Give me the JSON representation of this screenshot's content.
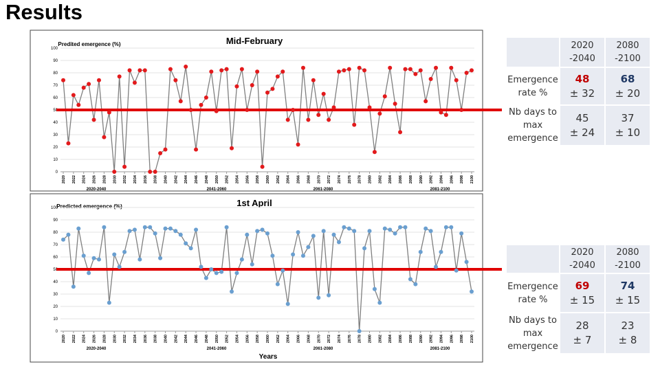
{
  "title": "Results",
  "chart_data": [
    {
      "type": "line",
      "title": "Mid-February",
      "y_label": "Predited emergence (%)",
      "x": [
        2020,
        2021,
        2022,
        2023,
        2024,
        2025,
        2026,
        2027,
        2028,
        2029,
        2030,
        2031,
        2032,
        2033,
        2034,
        2035,
        2036,
        2037,
        2038,
        2039,
        2040,
        2041,
        2042,
        2043,
        2044,
        2045,
        2046,
        2047,
        2048,
        2049,
        2050,
        2051,
        2052,
        2053,
        2054,
        2055,
        2056,
        2057,
        2058,
        2059,
        2060,
        2061,
        2062,
        2063,
        2064,
        2065,
        2066,
        2067,
        2068,
        2069,
        2070,
        2071,
        2072,
        2073,
        2074,
        2075,
        2076,
        2077,
        2078,
        2079,
        2080,
        2081,
        2082,
        2083,
        2084,
        2085,
        2086,
        2087,
        2088,
        2089,
        2090,
        2091,
        2092,
        2093,
        2094,
        2095,
        2096,
        2097,
        2098,
        2099,
        2100
      ],
      "values": [
        74,
        23,
        62,
        54,
        68,
        71,
        42,
        74,
        28,
        48,
        0,
        77,
        4,
        82,
        72,
        82,
        82,
        0,
        0,
        15,
        18,
        83,
        74,
        57,
        85,
        50,
        18,
        54,
        60,
        81,
        49,
        82,
        83,
        19,
        69,
        83,
        50,
        70,
        81,
        4,
        64,
        67,
        77,
        81,
        42,
        50,
        22,
        84,
        42,
        74,
        46,
        63,
        42,
        52,
        81,
        82,
        83,
        38,
        84,
        82,
        52,
        16,
        47,
        61,
        84,
        55,
        32,
        83,
        83,
        79,
        82,
        57,
        75,
        84,
        48,
        46,
        84,
        74,
        50,
        80,
        82
      ],
      "color": "#e31a1c",
      "line_color": "#7f7f7f",
      "xlim": [
        2020,
        2100
      ],
      "ylim": [
        0,
        100
      ],
      "yticks": [
        0,
        10,
        20,
        30,
        40,
        50,
        60,
        70,
        80,
        90,
        100
      ],
      "xticks": [
        2020,
        2022,
        2024,
        2026,
        2028,
        2030,
        2032,
        2034,
        2036,
        2038,
        2040,
        2042,
        2044,
        2046,
        2048,
        2050,
        2052,
        2054,
        2056,
        2058,
        2060,
        2062,
        2064,
        2066,
        2068,
        2070,
        2072,
        2074,
        2076,
        2078,
        2080,
        2082,
        2084,
        2086,
        2088,
        2090,
        2092,
        2094,
        2096,
        2098,
        2100
      ],
      "period_labels": [
        "2020-2040",
        "2041-2060",
        "2061-2080",
        "2081-2100"
      ],
      "threshold": 50,
      "threshold_color": "#e00000",
      "grid": true
    },
    {
      "type": "line",
      "title": "1st April",
      "y_label": "Predicted emergence (%)",
      "x_label": "Years",
      "x": [
        2020,
        2021,
        2022,
        2023,
        2024,
        2025,
        2026,
        2027,
        2028,
        2029,
        2030,
        2031,
        2032,
        2033,
        2034,
        2035,
        2036,
        2037,
        2038,
        2039,
        2040,
        2041,
        2042,
        2043,
        2044,
        2045,
        2046,
        2047,
        2048,
        2049,
        2050,
        2051,
        2052,
        2053,
        2054,
        2055,
        2056,
        2057,
        2058,
        2059,
        2060,
        2061,
        2062,
        2063,
        2064,
        2065,
        2066,
        2067,
        2068,
        2069,
        2070,
        2071,
        2072,
        2073,
        2074,
        2075,
        2076,
        2077,
        2078,
        2079,
        2080,
        2081,
        2082,
        2083,
        2084,
        2085,
        2086,
        2087,
        2088,
        2089,
        2090,
        2091,
        2092,
        2093,
        2094,
        2095,
        2096,
        2097,
        2098,
        2099,
        2100
      ],
      "values": [
        74,
        78,
        36,
        83,
        61,
        47,
        59,
        58,
        84,
        23,
        62,
        52,
        64,
        81,
        82,
        58,
        84,
        84,
        79,
        59,
        83,
        83,
        81,
        78,
        71,
        67,
        82,
        52,
        43,
        50,
        47,
        48,
        84,
        32,
        47,
        58,
        78,
        54,
        81,
        82,
        79,
        61,
        38,
        49,
        22,
        62,
        80,
        61,
        68,
        77,
        27,
        81,
        29,
        78,
        72,
        84,
        83,
        81,
        0,
        67,
        81,
        34,
        23,
        83,
        82,
        79,
        84,
        84,
        42,
        38,
        64,
        83,
        81,
        52,
        64,
        84,
        84,
        49,
        79,
        56,
        32
      ],
      "color": "#6a9fd0",
      "line_color": "#7f7f7f",
      "xlim": [
        2020,
        2100
      ],
      "ylim": [
        0,
        100
      ],
      "yticks": [
        0,
        10,
        20,
        30,
        40,
        50,
        60,
        70,
        80,
        90,
        100
      ],
      "xticks": [
        2020,
        2022,
        2024,
        2026,
        2028,
        2030,
        2032,
        2034,
        2036,
        2038,
        2040,
        2042,
        2044,
        2046,
        2048,
        2050,
        2052,
        2054,
        2056,
        2058,
        2060,
        2062,
        2064,
        2066,
        2068,
        2070,
        2072,
        2074,
        2076,
        2078,
        2080,
        2082,
        2084,
        2086,
        2088,
        2090,
        2092,
        2094,
        2096,
        2098,
        2100
      ],
      "period_labels": [
        "2020-2040",
        "2041-2060",
        "2061-2080",
        "2081-2100"
      ],
      "threshold": 50,
      "threshold_color": "#e00000",
      "grid": true
    }
  ],
  "tables": [
    {
      "columns": [
        "2020 -2040",
        "2080 -2100"
      ],
      "highlight_colors": [
        "#c00000",
        "#1f3864"
      ],
      "rows": [
        {
          "label": "Emergence rate %",
          "cells": [
            [
              "48",
              "± 32"
            ],
            [
              "68",
              "± 20"
            ]
          ]
        },
        {
          "label": "Nb days to max emergence",
          "cells": [
            [
              "45",
              "± 24"
            ],
            [
              "37",
              "± 10"
            ]
          ]
        }
      ]
    },
    {
      "columns": [
        "2020 -2040",
        "2080 -2100"
      ],
      "highlight_colors": [
        "#c00000",
        "#1f3864"
      ],
      "rows": [
        {
          "label": "Emergence rate %",
          "cells": [
            [
              "69",
              "± 15"
            ],
            [
              "74",
              "± 15"
            ]
          ]
        },
        {
          "label": "Nb days to max emergence",
          "cells": [
            [
              "28",
              "± 7"
            ],
            [
              "23",
              "± 8"
            ]
          ]
        }
      ]
    }
  ]
}
